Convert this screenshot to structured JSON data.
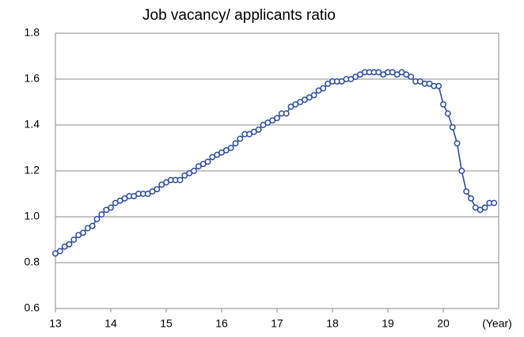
{
  "chart_data": {
    "type": "line",
    "title": "Job vacancy/ applicants ratio",
    "x_label": "(Year)",
    "xlim": [
      13,
      21
    ],
    "xticks": [
      13,
      14,
      15,
      16,
      17,
      18,
      19,
      20
    ],
    "ylim": [
      0.6,
      1.8
    ],
    "yticks": [
      0.6,
      0.8,
      {
        "value": 1,
        "label": "1.0"
      },
      1.2,
      1.4,
      1.6,
      1.8
    ],
    "grid": true,
    "series": [
      {
        "name": "Job vacancy/ applicants ratio",
        "color": "#2a4d9b",
        "x": [
          13,
          13.083,
          13.167,
          13.25,
          13.333,
          13.417,
          13.5,
          13.583,
          13.667,
          13.75,
          13.833,
          13.917,
          14,
          14.083,
          14.167,
          14.25,
          14.333,
          14.417,
          14.5,
          14.583,
          14.667,
          14.75,
          14.833,
          14.917,
          15,
          15.083,
          15.167,
          15.25,
          15.333,
          15.417,
          15.5,
          15.583,
          15.667,
          15.75,
          15.833,
          15.917,
          16,
          16.083,
          16.167,
          16.25,
          16.333,
          16.417,
          16.5,
          16.583,
          16.667,
          16.75,
          16.833,
          16.917,
          17,
          17.083,
          17.167,
          17.25,
          17.333,
          17.417,
          17.5,
          17.583,
          17.667,
          17.75,
          17.833,
          17.917,
          18,
          18.083,
          18.167,
          18.25,
          18.333,
          18.417,
          18.5,
          18.583,
          18.667,
          18.75,
          18.833,
          18.917,
          19,
          19.083,
          19.167,
          19.25,
          19.333,
          19.417,
          19.5,
          19.583,
          19.667,
          19.75,
          19.833,
          19.917,
          20,
          20.083,
          20.167,
          20.25,
          20.333,
          20.417,
          20.5,
          20.583,
          20.667,
          20.75,
          20.833,
          20.917
        ],
        "values": [
          0.84,
          0.85,
          0.87,
          0.88,
          0.9,
          0.92,
          0.93,
          0.95,
          0.96,
          0.99,
          1.01,
          1.03,
          1.04,
          1.06,
          1.07,
          1.08,
          1.09,
          1.09,
          1.1,
          1.1,
          1.1,
          1.11,
          1.12,
          1.14,
          1.15,
          1.16,
          1.16,
          1.16,
          1.18,
          1.19,
          1.2,
          1.22,
          1.23,
          1.24,
          1.26,
          1.27,
          1.28,
          1.29,
          1.3,
          1.32,
          1.34,
          1.36,
          1.36,
          1.37,
          1.38,
          1.4,
          1.41,
          1.42,
          1.43,
          1.45,
          1.45,
          1.48,
          1.49,
          1.5,
          1.51,
          1.52,
          1.53,
          1.55,
          1.56,
          1.58,
          1.59,
          1.59,
          1.59,
          1.6,
          1.6,
          1.61,
          1.62,
          1.63,
          1.63,
          1.63,
          1.63,
          1.62,
          1.63,
          1.63,
          1.62,
          1.63,
          1.62,
          1.61,
          1.59,
          1.59,
          1.58,
          1.58,
          1.57,
          1.57,
          1.49,
          1.45,
          1.39,
          1.32,
          1.2,
          1.11,
          1.08,
          1.04,
          1.03,
          1.04,
          1.06,
          1.06
        ]
      }
    ]
  }
}
